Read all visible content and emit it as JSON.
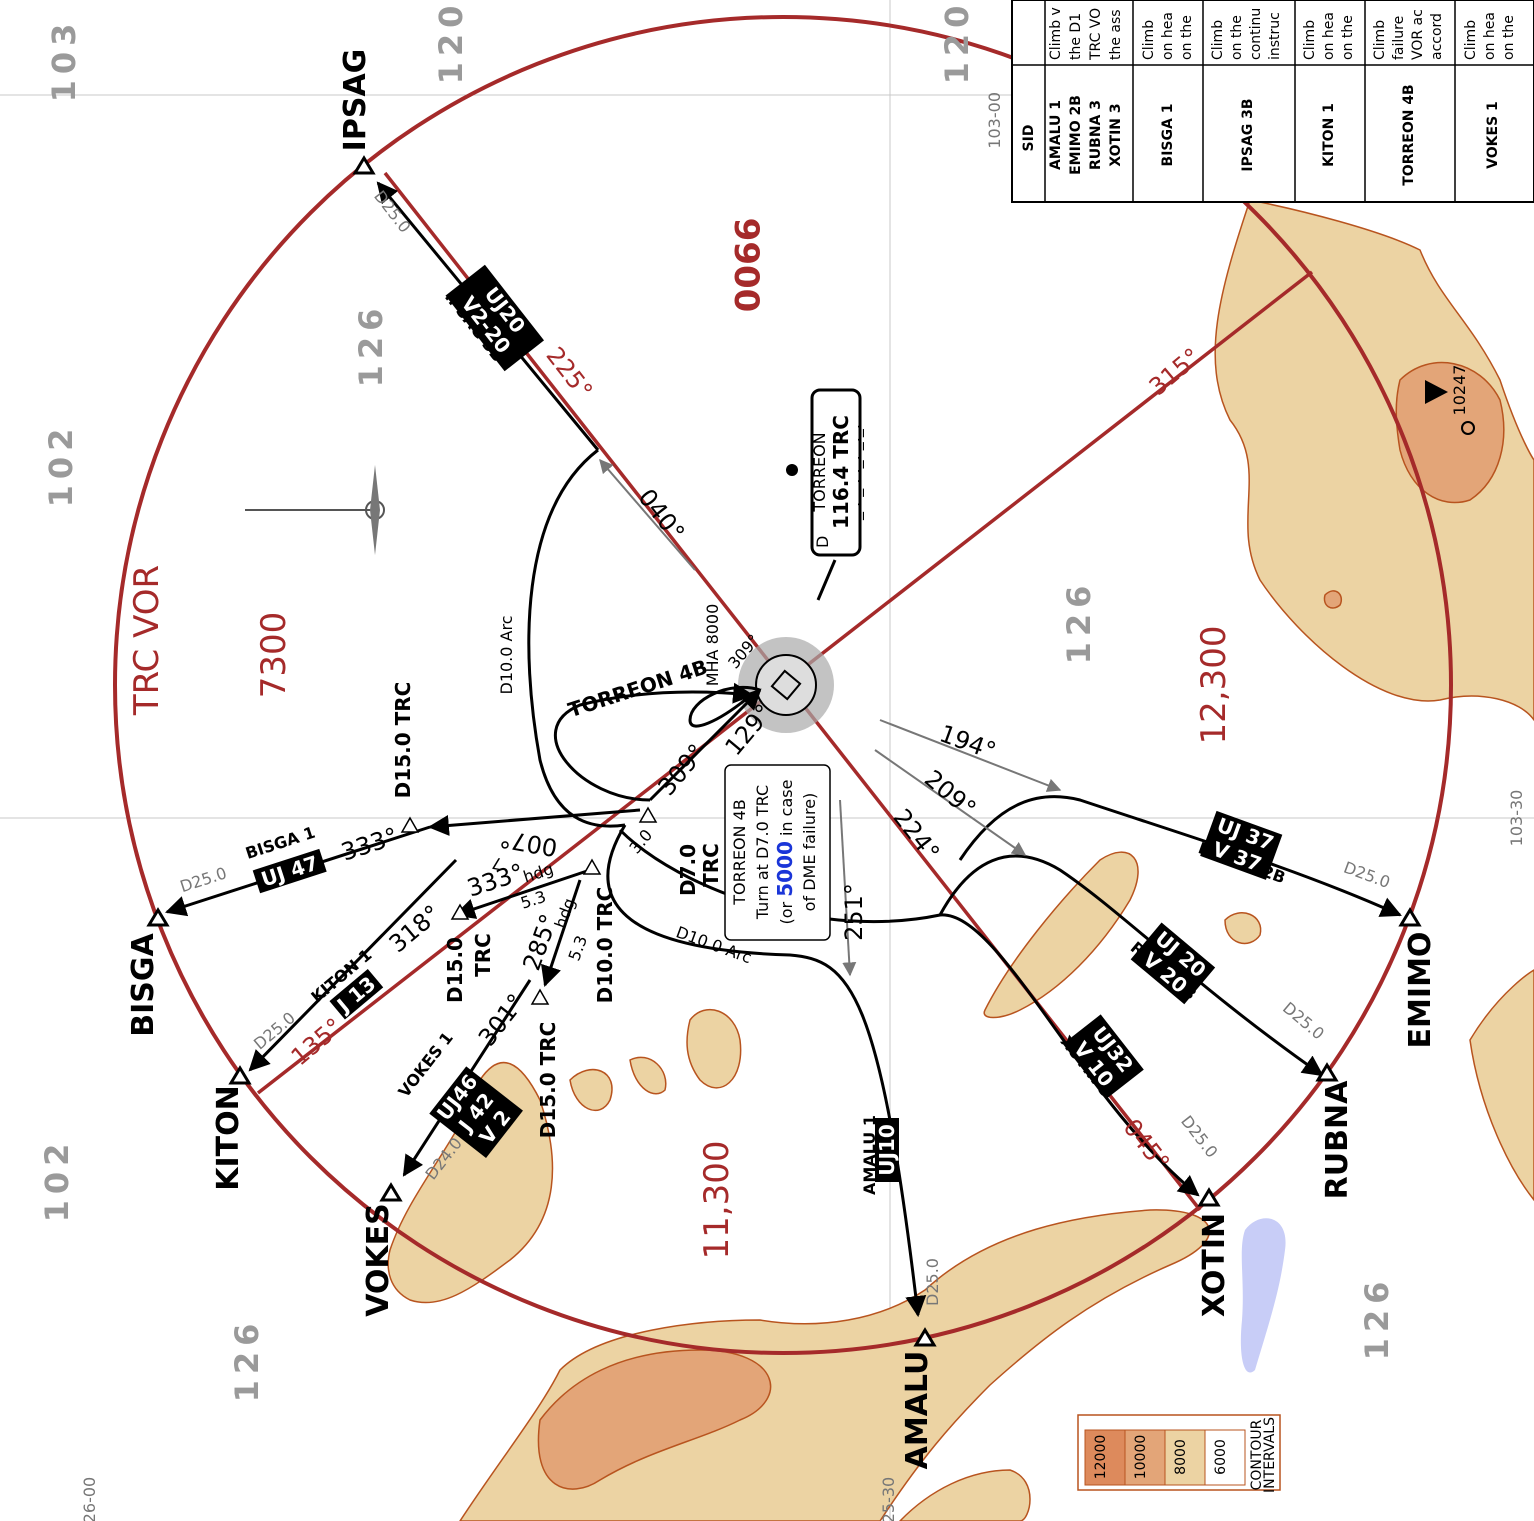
{
  "grid_labels": {
    "tl": "103",
    "tc1": "120",
    "tc2": "120",
    "ml": "102",
    "bl": "102",
    "br": "126",
    "bc": "126",
    "mc": "126",
    "uc": "126",
    "lc": "126"
  },
  "coords": {
    "top": "103-00",
    "right": "103-30",
    "bottom_left": "26-00",
    "bottom_mid": "25-30"
  },
  "vor_title": "TRC VOR",
  "msa": {
    "nw": "9900",
    "w": "7300",
    "e": "12,300",
    "s": "11,300"
  },
  "msa_bearings": {
    "a": "315°",
    "b": "135°",
    "c": "225°",
    "d": "045°"
  },
  "navaid": {
    "name": "TORREON",
    "freq": "116.4 TRC",
    "d": "D",
    "morse": "_ . _ . ._. _._."
  },
  "waypoints": {
    "ipsag": "IPSAG",
    "bisga": "BISGA",
    "kiton": "KITON",
    "vokes": "VOKES",
    "amalu": "AMALU",
    "xotin": "XOTIN",
    "rubna": "RUBNA",
    "emimo": "EMIMO"
  },
  "fixes": {
    "d15_n": "D15.0 TRC",
    "d15_w1": "D15.0",
    "d15_w2": "TRC",
    "d10": "D10.0 TRC",
    "d15_s": "D15.0 TRC",
    "d7a": "D7.0",
    "d7b": "TRC"
  },
  "arcs": {
    "a": "D10.0 Arc",
    "b": "D10.0 Arc"
  },
  "routes": {
    "ipsag": "IPSAG 3B",
    "bisga": "BISGA 1",
    "kiton": "KITON 1",
    "vokes": "VOKES 1",
    "amalu": "AMALU 1",
    "xotin": "XOTIN 3",
    "rubna": "RUBNA 3",
    "emimo": "EMIMO 2B",
    "torreon": "TORREON 4B"
  },
  "airways": {
    "ipsag1": "UJ20",
    "ipsag2": "V2-20",
    "bisga1": "UJ 47",
    "kiton1": "J 13",
    "vokes1": "UJ46",
    "vokes2": "J 42",
    "vokes3": "V 2",
    "amalu1": "UJ10",
    "xotin1": "UJ32",
    "xotin2": "V 10",
    "rubna1": "UJ 20",
    "rubna2": "V 20",
    "emimo1": "UJ 37",
    "emimo2": "V 37"
  },
  "courses": {
    "c040": "040°",
    "c309a": "309°",
    "c309b": "309°",
    "c129": "129°",
    "c194": "194°",
    "c209": "209°",
    "c224": "224°",
    "c251": "251°",
    "c333a": "333°",
    "c333b": "333°",
    "c318": "318°",
    "c301": "301°",
    "c285": "285°",
    "c007": "007°",
    "hdg": "hdg",
    "hdg2": "hdg",
    "d3": "3.0",
    "d53a": "5.3",
    "d53b": "5.3",
    "d7": "7"
  },
  "dists": {
    "d25a": "D25.0",
    "d25b": "D25.0",
    "d25c": "D25.0",
    "d25d": "D25.0",
    "d25e": "D25.0",
    "d25f": "D25.0",
    "d24": "D24.0",
    "d25g": "D25.0"
  },
  "mha": "MHA 8000",
  "note": {
    "l1": "TORREON 4B",
    "l2": "Turn at D7.0 TRC",
    "l3a": "(or ",
    "l3b": "5000",
    "l3c": " in case",
    "l4": "of DME failure)"
  },
  "spot": "10247",
  "table": {
    "header": "SID",
    "rows": [
      {
        "sid": "AMALU 1",
        "sid2": "EMIMO 2B",
        "sid3": "RUBNA 3",
        "sid4": "XOTIN 3",
        "t1": "Climb v",
        "t2": "the D1",
        "t3": "TRC VO",
        "t4": "the ass"
      },
      {
        "sid": "BISGA 1",
        "t1": "Climb",
        "t2": "on hea",
        "t3": "on the"
      },
      {
        "sid": "IPSAG 3B",
        "t1": "Climb",
        "t2": "on the",
        "t3": "continu",
        "t4": "instruc"
      },
      {
        "sid": "KITON 1",
        "t1": "Climb",
        "t2": "on hea",
        "t3": "on the"
      },
      {
        "sid": "TORREON 4B",
        "t1": "Climb",
        "t2": "failure",
        "t3": "VOR ac",
        "t4": "accord"
      },
      {
        "sid": "VOKES 1",
        "t1": "Climb",
        "t2": "on hea",
        "t3": "on the"
      }
    ]
  },
  "legend": {
    "title1": "CONTOUR",
    "title2": "INTERVALS",
    "v1": "12000",
    "v2": "10000",
    "v3": "8000",
    "v4": "6000"
  },
  "colors": {
    "terrain_light": "#ecd3a3",
    "terrain_mid": "#e3a578",
    "terrain_dark": "#dd8a5c",
    "msa_red": "#a52a2a",
    "water": "#c8cdf7"
  }
}
